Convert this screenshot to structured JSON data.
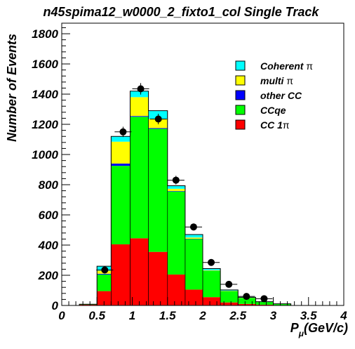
{
  "chart_data": {
    "type": "bar",
    "subtype": "stacked-histogram-with-data-points",
    "title": "n45spima12_w0000_2_fixto1_col Single Track",
    "xlabel_main": "P",
    "xlabel_sub": "μ",
    "xlabel_rest": "(GeV/c)",
    "ylabel": "Number of Events",
    "xlim": [
      0,
      4
    ],
    "ylim": [
      0,
      1870
    ],
    "x_ticks": [
      "0",
      "0.5",
      "1",
      "1.5",
      "2",
      "2.5",
      "3",
      "3.5",
      "4"
    ],
    "x_tick_values": [
      0,
      0.5,
      1,
      1.5,
      2,
      2.5,
      3,
      3.5,
      4
    ],
    "y_ticks": [
      "0",
      "200",
      "400",
      "600",
      "800",
      "1000",
      "1200",
      "1400",
      "1600",
      "1800"
    ],
    "y_tick_values": [
      0,
      200,
      400,
      600,
      800,
      1000,
      1200,
      1400,
      1600,
      1800
    ],
    "bin_edges": [
      0.25,
      0.5,
      0.7,
      0.97,
      1.23,
      1.5,
      1.75,
      2.0,
      2.25,
      2.5,
      2.75,
      3.0,
      3.25
    ],
    "series": [
      {
        "name": "CC 1π",
        "label_main": "CC 1",
        "label_greek": "π",
        "color": "#ff0000",
        "values": [
          5,
          95,
          405,
          445,
          355,
          205,
          105,
          55,
          20,
          10,
          5,
          2
        ]
      },
      {
        "name": "CCqe",
        "label_main": "CCqe",
        "label_greek": "",
        "color": "#00ff00",
        "values": [
          3,
          110,
          520,
          805,
          815,
          550,
          335,
          175,
          75,
          40,
          18,
          8
        ]
      },
      {
        "name": "other CC",
        "label_main": "other CC",
        "label_greek": "",
        "color": "#0000ff",
        "values": [
          0,
          5,
          15,
          5,
          5,
          3,
          2,
          1,
          1,
          0,
          0,
          0
        ]
      },
      {
        "name": "multi π",
        "label_main": "multi ",
        "label_greek": "π",
        "color": "#ffff00",
        "values": [
          0,
          20,
          145,
          125,
          60,
          15,
          8,
          3,
          2,
          1,
          0,
          0
        ]
      },
      {
        "name": "Coherent π",
        "label_main": "Coherent ",
        "label_greek": "π",
        "color": "#00ffff",
        "values": [
          0,
          30,
          35,
          40,
          55,
          20,
          20,
          10,
          5,
          3,
          2,
          1
        ]
      }
    ],
    "data_points": {
      "x": [
        0.61,
        0.87,
        1.12,
        1.37,
        1.62,
        1.87,
        2.12,
        2.37,
        2.62,
        2.87
      ],
      "y": [
        235,
        1150,
        1435,
        1235,
        830,
        520,
        285,
        140,
        60,
        45
      ],
      "xerr": [
        0.12,
        0.12,
        0.12,
        0.12,
        0.12,
        0.12,
        0.12,
        0.12,
        0.12,
        0.12
      ],
      "yerr": [
        15,
        34,
        38,
        35,
        29,
        23,
        17,
        12,
        8,
        7
      ]
    },
    "legend_position": "top-right",
    "grid": false
  }
}
